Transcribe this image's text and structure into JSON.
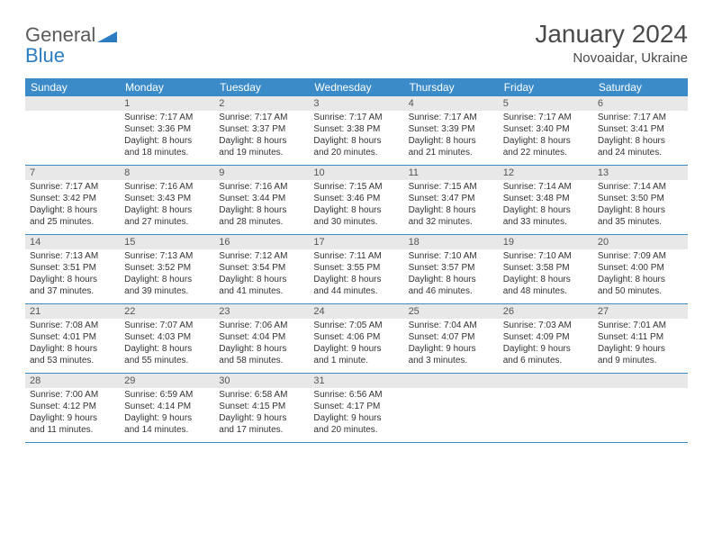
{
  "logo": {
    "word1": "General",
    "word2": "Blue"
  },
  "title": "January 2024",
  "location": "Novoaidar, Ukraine",
  "colors": {
    "header_bg": "#3b8bc9",
    "header_text": "#ffffff",
    "daynum_bg": "#e8e8e8",
    "divider": "#3b8bc9",
    "text": "#333333",
    "logo_gray": "#5a5a5a",
    "logo_blue": "#2b7cc0"
  },
  "day_names": [
    "Sunday",
    "Monday",
    "Tuesday",
    "Wednesday",
    "Thursday",
    "Friday",
    "Saturday"
  ],
  "weeks": [
    [
      {
        "num": "",
        "sunrise": "",
        "sunset": "",
        "daylight1": "",
        "daylight2": ""
      },
      {
        "num": "1",
        "sunrise": "Sunrise: 7:17 AM",
        "sunset": "Sunset: 3:36 PM",
        "daylight1": "Daylight: 8 hours",
        "daylight2": "and 18 minutes."
      },
      {
        "num": "2",
        "sunrise": "Sunrise: 7:17 AM",
        "sunset": "Sunset: 3:37 PM",
        "daylight1": "Daylight: 8 hours",
        "daylight2": "and 19 minutes."
      },
      {
        "num": "3",
        "sunrise": "Sunrise: 7:17 AM",
        "sunset": "Sunset: 3:38 PM",
        "daylight1": "Daylight: 8 hours",
        "daylight2": "and 20 minutes."
      },
      {
        "num": "4",
        "sunrise": "Sunrise: 7:17 AM",
        "sunset": "Sunset: 3:39 PM",
        "daylight1": "Daylight: 8 hours",
        "daylight2": "and 21 minutes."
      },
      {
        "num": "5",
        "sunrise": "Sunrise: 7:17 AM",
        "sunset": "Sunset: 3:40 PM",
        "daylight1": "Daylight: 8 hours",
        "daylight2": "and 22 minutes."
      },
      {
        "num": "6",
        "sunrise": "Sunrise: 7:17 AM",
        "sunset": "Sunset: 3:41 PM",
        "daylight1": "Daylight: 8 hours",
        "daylight2": "and 24 minutes."
      }
    ],
    [
      {
        "num": "7",
        "sunrise": "Sunrise: 7:17 AM",
        "sunset": "Sunset: 3:42 PM",
        "daylight1": "Daylight: 8 hours",
        "daylight2": "and 25 minutes."
      },
      {
        "num": "8",
        "sunrise": "Sunrise: 7:16 AM",
        "sunset": "Sunset: 3:43 PM",
        "daylight1": "Daylight: 8 hours",
        "daylight2": "and 27 minutes."
      },
      {
        "num": "9",
        "sunrise": "Sunrise: 7:16 AM",
        "sunset": "Sunset: 3:44 PM",
        "daylight1": "Daylight: 8 hours",
        "daylight2": "and 28 minutes."
      },
      {
        "num": "10",
        "sunrise": "Sunrise: 7:15 AM",
        "sunset": "Sunset: 3:46 PM",
        "daylight1": "Daylight: 8 hours",
        "daylight2": "and 30 minutes."
      },
      {
        "num": "11",
        "sunrise": "Sunrise: 7:15 AM",
        "sunset": "Sunset: 3:47 PM",
        "daylight1": "Daylight: 8 hours",
        "daylight2": "and 32 minutes."
      },
      {
        "num": "12",
        "sunrise": "Sunrise: 7:14 AM",
        "sunset": "Sunset: 3:48 PM",
        "daylight1": "Daylight: 8 hours",
        "daylight2": "and 33 minutes."
      },
      {
        "num": "13",
        "sunrise": "Sunrise: 7:14 AM",
        "sunset": "Sunset: 3:50 PM",
        "daylight1": "Daylight: 8 hours",
        "daylight2": "and 35 minutes."
      }
    ],
    [
      {
        "num": "14",
        "sunrise": "Sunrise: 7:13 AM",
        "sunset": "Sunset: 3:51 PM",
        "daylight1": "Daylight: 8 hours",
        "daylight2": "and 37 minutes."
      },
      {
        "num": "15",
        "sunrise": "Sunrise: 7:13 AM",
        "sunset": "Sunset: 3:52 PM",
        "daylight1": "Daylight: 8 hours",
        "daylight2": "and 39 minutes."
      },
      {
        "num": "16",
        "sunrise": "Sunrise: 7:12 AM",
        "sunset": "Sunset: 3:54 PM",
        "daylight1": "Daylight: 8 hours",
        "daylight2": "and 41 minutes."
      },
      {
        "num": "17",
        "sunrise": "Sunrise: 7:11 AM",
        "sunset": "Sunset: 3:55 PM",
        "daylight1": "Daylight: 8 hours",
        "daylight2": "and 44 minutes."
      },
      {
        "num": "18",
        "sunrise": "Sunrise: 7:10 AM",
        "sunset": "Sunset: 3:57 PM",
        "daylight1": "Daylight: 8 hours",
        "daylight2": "and 46 minutes."
      },
      {
        "num": "19",
        "sunrise": "Sunrise: 7:10 AM",
        "sunset": "Sunset: 3:58 PM",
        "daylight1": "Daylight: 8 hours",
        "daylight2": "and 48 minutes."
      },
      {
        "num": "20",
        "sunrise": "Sunrise: 7:09 AM",
        "sunset": "Sunset: 4:00 PM",
        "daylight1": "Daylight: 8 hours",
        "daylight2": "and 50 minutes."
      }
    ],
    [
      {
        "num": "21",
        "sunrise": "Sunrise: 7:08 AM",
        "sunset": "Sunset: 4:01 PM",
        "daylight1": "Daylight: 8 hours",
        "daylight2": "and 53 minutes."
      },
      {
        "num": "22",
        "sunrise": "Sunrise: 7:07 AM",
        "sunset": "Sunset: 4:03 PM",
        "daylight1": "Daylight: 8 hours",
        "daylight2": "and 55 minutes."
      },
      {
        "num": "23",
        "sunrise": "Sunrise: 7:06 AM",
        "sunset": "Sunset: 4:04 PM",
        "daylight1": "Daylight: 8 hours",
        "daylight2": "and 58 minutes."
      },
      {
        "num": "24",
        "sunrise": "Sunrise: 7:05 AM",
        "sunset": "Sunset: 4:06 PM",
        "daylight1": "Daylight: 9 hours",
        "daylight2": "and 1 minute."
      },
      {
        "num": "25",
        "sunrise": "Sunrise: 7:04 AM",
        "sunset": "Sunset: 4:07 PM",
        "daylight1": "Daylight: 9 hours",
        "daylight2": "and 3 minutes."
      },
      {
        "num": "26",
        "sunrise": "Sunrise: 7:03 AM",
        "sunset": "Sunset: 4:09 PM",
        "daylight1": "Daylight: 9 hours",
        "daylight2": "and 6 minutes."
      },
      {
        "num": "27",
        "sunrise": "Sunrise: 7:01 AM",
        "sunset": "Sunset: 4:11 PM",
        "daylight1": "Daylight: 9 hours",
        "daylight2": "and 9 minutes."
      }
    ],
    [
      {
        "num": "28",
        "sunrise": "Sunrise: 7:00 AM",
        "sunset": "Sunset: 4:12 PM",
        "daylight1": "Daylight: 9 hours",
        "daylight2": "and 11 minutes."
      },
      {
        "num": "29",
        "sunrise": "Sunrise: 6:59 AM",
        "sunset": "Sunset: 4:14 PM",
        "daylight1": "Daylight: 9 hours",
        "daylight2": "and 14 minutes."
      },
      {
        "num": "30",
        "sunrise": "Sunrise: 6:58 AM",
        "sunset": "Sunset: 4:15 PM",
        "daylight1": "Daylight: 9 hours",
        "daylight2": "and 17 minutes."
      },
      {
        "num": "31",
        "sunrise": "Sunrise: 6:56 AM",
        "sunset": "Sunset: 4:17 PM",
        "daylight1": "Daylight: 9 hours",
        "daylight2": "and 20 minutes."
      },
      {
        "num": "",
        "sunrise": "",
        "sunset": "",
        "daylight1": "",
        "daylight2": ""
      },
      {
        "num": "",
        "sunrise": "",
        "sunset": "",
        "daylight1": "",
        "daylight2": ""
      },
      {
        "num": "",
        "sunrise": "",
        "sunset": "",
        "daylight1": "",
        "daylight2": ""
      }
    ]
  ]
}
